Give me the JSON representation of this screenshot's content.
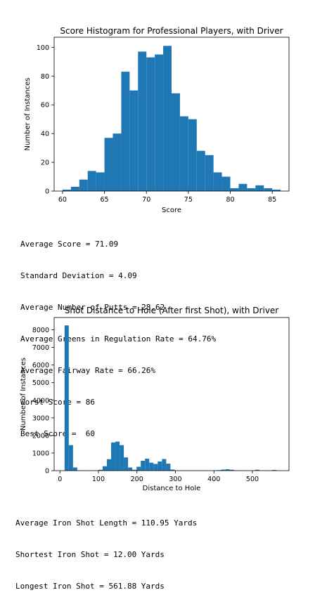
{
  "chart_data": [
    {
      "type": "bar",
      "title": "Score Histogram for Professional Players, with Driver",
      "xlabel": "Score",
      "ylabel": "Number of Instances",
      "xlim": [
        59,
        87
      ],
      "ylim": [
        0,
        107
      ],
      "xticks": [
        60,
        65,
        70,
        75,
        80,
        85
      ],
      "yticks": [
        0,
        20,
        40,
        60,
        80,
        100
      ],
      "bar_width": 1,
      "color": "#1f77b4",
      "bins": [
        60,
        61,
        62,
        63,
        64,
        65,
        66,
        67,
        68,
        69,
        70,
        71,
        72,
        73,
        74,
        75,
        76,
        77,
        78,
        79,
        80,
        81,
        82,
        83,
        84,
        85
      ],
      "values": [
        1,
        3,
        8,
        14,
        13,
        37,
        40,
        83,
        70,
        97,
        93,
        95,
        101,
        68,
        52,
        50,
        28,
        25,
        13,
        10,
        2,
        5,
        2,
        4,
        2,
        1
      ]
    },
    {
      "type": "bar",
      "title": "Shot Distance to Hole (After first Shot), with Driver",
      "xlabel": "Distance to Hole",
      "ylabel": "Number of Instances",
      "xlim": [
        -15,
        595
      ],
      "ylim": [
        0,
        8700
      ],
      "xticks": [
        0,
        100,
        200,
        300,
        400,
        500
      ],
      "yticks": [
        0,
        1000,
        2000,
        3000,
        4000,
        5000,
        6000,
        7000,
        8000
      ],
      "bar_width": 11,
      "color": "#1f77b4",
      "bins": [
        12,
        23,
        34,
        45,
        56,
        67,
        78,
        89,
        100,
        111,
        122,
        133,
        144,
        155,
        166,
        177,
        188,
        199,
        210,
        221,
        232,
        243,
        254,
        265,
        276,
        287,
        298,
        309,
        320,
        331,
        342,
        353,
        364,
        375,
        386,
        397,
        408,
        419,
        430,
        441,
        452,
        463,
        474,
        485,
        496,
        507,
        518,
        529,
        540,
        551
      ],
      "values": [
        8250,
        1450,
        180,
        20,
        5,
        5,
        5,
        10,
        50,
        250,
        650,
        1600,
        1650,
        1450,
        750,
        180,
        50,
        220,
        560,
        680,
        450,
        380,
        520,
        660,
        400,
        60,
        10,
        5,
        5,
        5,
        5,
        5,
        5,
        5,
        5,
        10,
        30,
        60,
        80,
        50,
        20,
        5,
        5,
        5,
        5,
        50,
        10,
        5,
        5,
        40
      ]
    }
  ],
  "stats1": {
    "lines": [
      "Average Score = 71.09",
      "Standard Deviation = 4.09",
      "Average Number of Putts = 28.62",
      "Average Greens in Regulation Rate = 64.76%",
      "Average Fairway Rate = 66.26%",
      "Worst Score = 86",
      "Best Score =  60"
    ]
  },
  "stats2": {
    "lines": [
      "Average Iron Shot Length = 110.95 Yards",
      "Shortest Iron Shot = 12.00 Yards",
      "Longest Iron Shot = 561.88 Yards"
    ]
  }
}
